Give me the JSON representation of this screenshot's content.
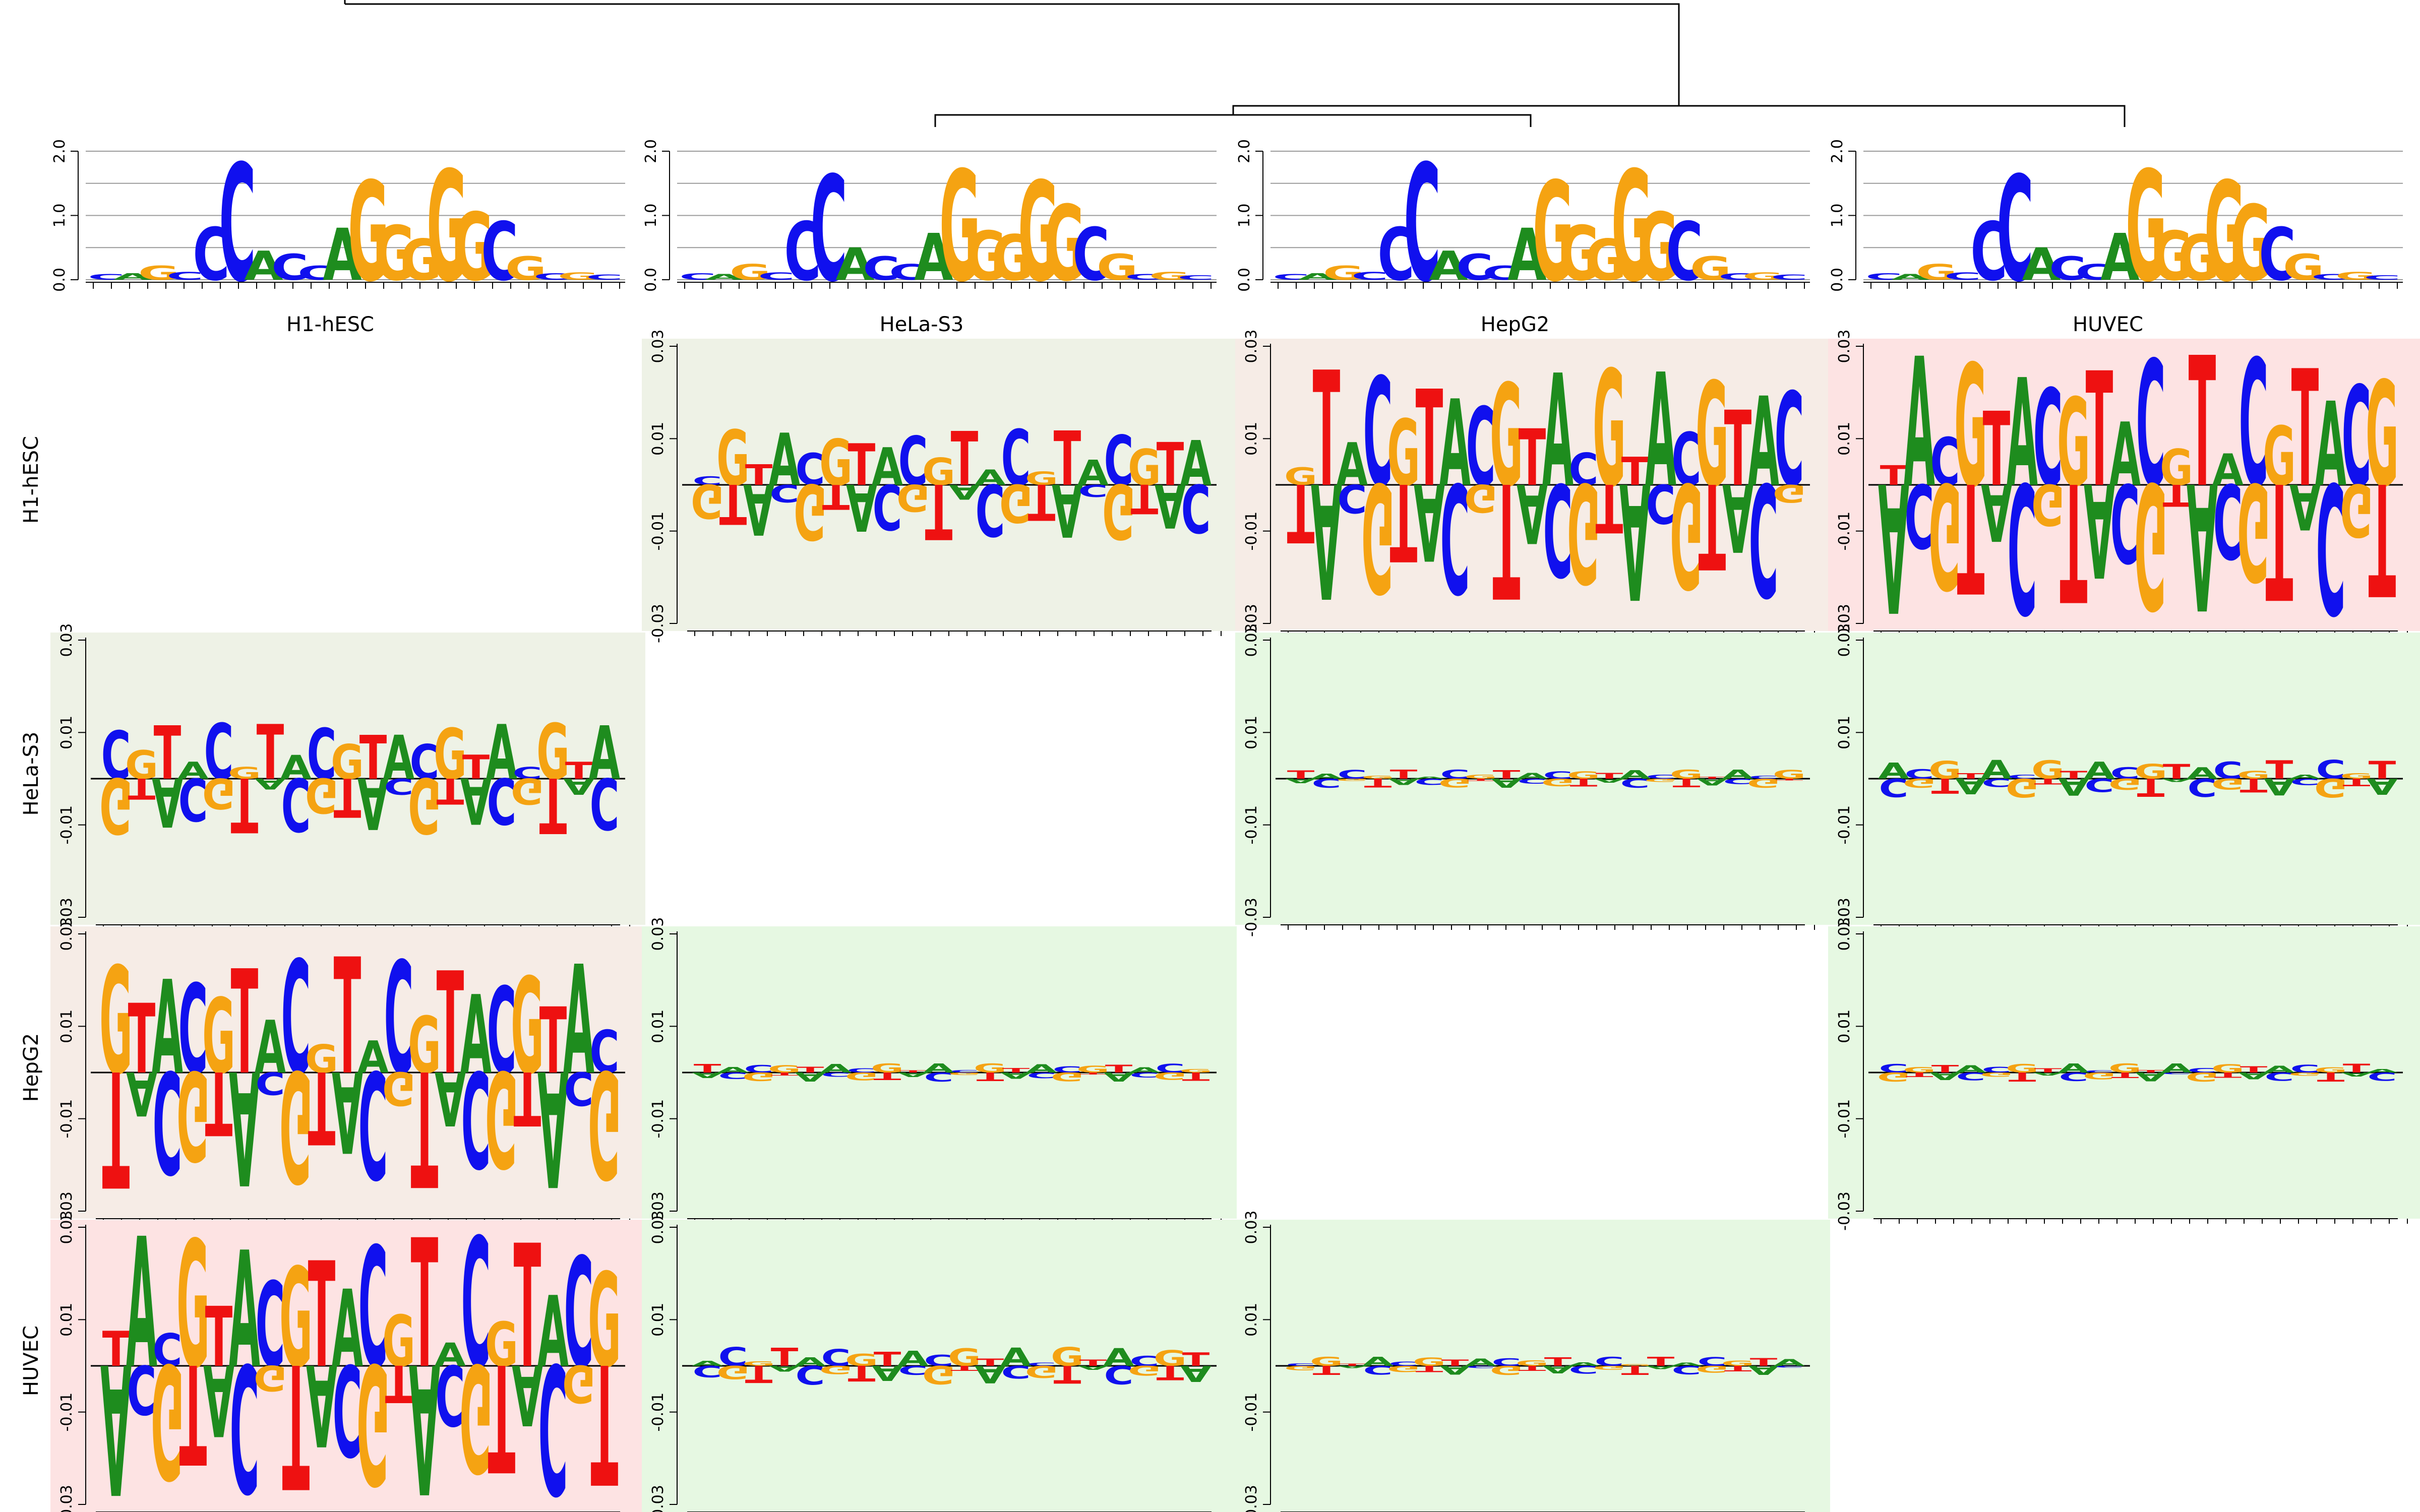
{
  "figure": {
    "cell_lines": [
      "H1-hESC",
      "HeLa-S3",
      "HepG2",
      "HUVEC"
    ],
    "logo_axis_ticks": [
      "0.0",
      "1.0",
      "2.0"
    ],
    "diff_axis_ticks": [
      "-0.03",
      "-0.01",
      "0.01",
      "0.03"
    ],
    "colors": {
      "A": "#1e8c1e",
      "C": "#1010ee",
      "G": "#f5a312",
      "T": "#ee1111",
      "bg_high": "#fde3e3",
      "bg_mid": "#f6ece6",
      "bg_low": "#eef2e6",
      "bg_min": "#e6f8e2"
    }
  },
  "dendrogram": {
    "description_free": true,
    "merges": [
      {
        "left": "HepG2",
        "right": "HUVEC"
      },
      {
        "left": "HeLa-S3",
        "right": "HepG2+HUVEC"
      },
      {
        "left": "H1-hESC",
        "right": "HeLa-S3+HepG2+HUVEC"
      }
    ]
  },
  "logos": [
    {
      "cell_line": "H1-hESC",
      "sequence": "...GGCCACNAGGGGGCGC..."
    },
    {
      "cell_line": "HeLa-S3",
      "sequence": "...CCACNAGGGGGCG..."
    },
    {
      "cell_line": "HepG2",
      "sequence": "...CCACNAGGGGGCG..."
    },
    {
      "cell_line": "HUVEC",
      "sequence": "...CCACNAGGGGGCA..."
    }
  ],
  "difference_matrix": {
    "rows": [
      "H1-hESC",
      "HeLa-S3",
      "HepG2",
      "HUVEC"
    ],
    "cols": [
      "H1-hESC",
      "HeLa-S3",
      "HepG2",
      "HUVEC"
    ],
    "background_levels": [
      [
        "",
        "low",
        "mid",
        "high"
      ],
      [
        "low",
        "",
        "min",
        "min"
      ],
      [
        "mid",
        "min",
        "",
        "min"
      ],
      [
        "high",
        "min",
        "min",
        ""
      ]
    ],
    "peak_magnitude": [
      [
        0,
        0.012,
        0.025,
        0.028
      ],
      [
        0.012,
        0,
        0.002,
        0.004
      ],
      [
        0.025,
        0.002,
        0,
        0.002
      ],
      [
        0.028,
        0.004,
        0.002,
        0
      ]
    ],
    "ylim": [
      -0.03,
      0.03
    ]
  }
}
